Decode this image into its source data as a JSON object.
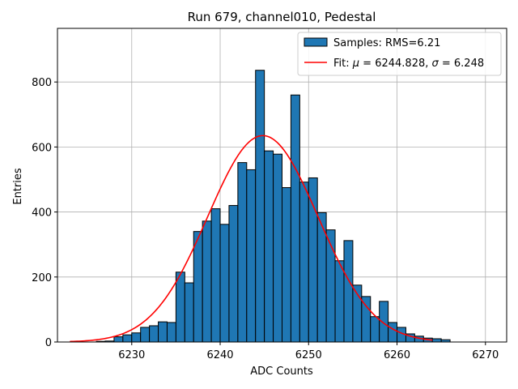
{
  "chart_data": {
    "type": "bar",
    "title": "Run 679, channel010, Pedestal",
    "xlabel": "ADC Counts",
    "ylabel": "Entries",
    "xlim": [
      6221.6,
      6272.4
    ],
    "ylim": [
      0,
      965
    ],
    "x_ticks": [
      6230,
      6240,
      6250,
      6260,
      6270
    ],
    "y_ticks": [
      0,
      200,
      400,
      600,
      800
    ],
    "grid": true,
    "legend_position": "top-right",
    "bin_width": 1,
    "histogram": {
      "name": "Samples: RMS=6.21",
      "color": "#1f77b4",
      "edge_color": "#000000",
      "bin_starts": [
        6226,
        6227,
        6228,
        6229,
        6230,
        6231,
        6232,
        6233,
        6234,
        6235,
        6236,
        6237,
        6238,
        6239,
        6240,
        6241,
        6242,
        6243,
        6244,
        6245,
        6246,
        6247,
        6248,
        6249,
        6250,
        6251,
        6252,
        6253,
        6254,
        6255,
        6256,
        6257,
        6258,
        6259,
        6260,
        6261,
        6262,
        6263,
        6264,
        6265
      ],
      "counts": [
        2,
        3,
        16,
        22,
        28,
        45,
        50,
        62,
        60,
        215,
        182,
        340,
        372,
        410,
        362,
        420,
        552,
        530,
        836,
        588,
        578,
        475,
        760,
        492,
        505,
        398,
        345,
        250,
        312,
        175,
        140,
        78,
        125,
        60,
        45,
        25,
        18,
        12,
        10,
        7
      ]
    },
    "fit": {
      "name": "Fit: μ = 6244.828, σ = 6.248",
      "legend_label_prefix": "Fit: ",
      "legend_label_mu": "μ",
      "legend_label_mid": " = 6244.828, ",
      "legend_label_sigma": "σ",
      "legend_label_end": " = 6.248",
      "color": "#ff0000",
      "mu": 6244.828,
      "sigma": 6.248,
      "amplitude": 635,
      "x_range": [
        6223,
        6264
      ]
    }
  }
}
